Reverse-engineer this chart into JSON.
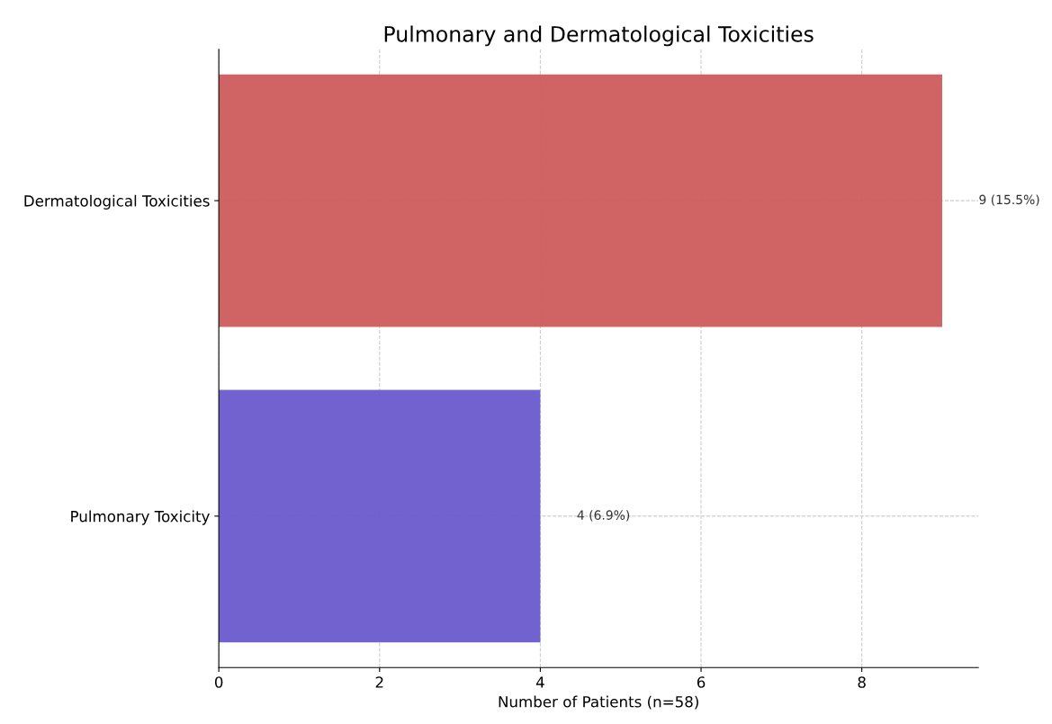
{
  "chart_data": {
    "type": "bar",
    "orientation": "horizontal",
    "title": "Pulmonary and Dermatological Toxicities",
    "xlabel": "Number of Patients (n=58)",
    "categories": [
      "Dermatological Toxicities",
      "Pulmonary Toxicity"
    ],
    "values": [
      9,
      4
    ],
    "colors": [
      "#cd5c5c",
      "#6a5acd"
    ],
    "value_labels": [
      "9 (15.5%)",
      "4 (6.9%)"
    ],
    "xlim": [
      0,
      9.45
    ],
    "xticks": [
      0,
      2,
      4,
      6,
      8
    ],
    "grid": true
  }
}
